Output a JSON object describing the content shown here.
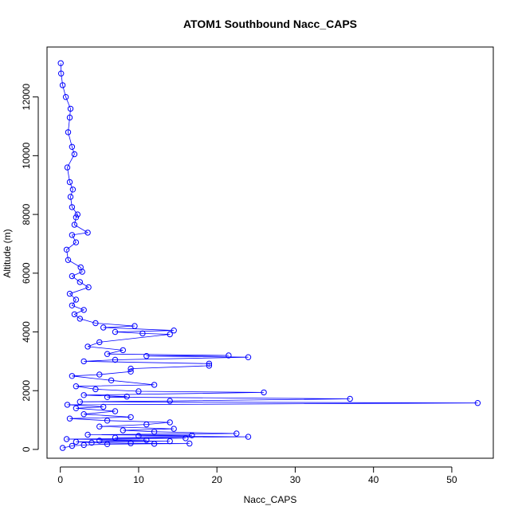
{
  "chart_data": {
    "type": "scatter",
    "title": "ATOM1 Southbound Nacc_CAPS",
    "xlabel": "Nacc_CAPS",
    "ylabel": "Altitude (m)",
    "xlim": [
      -1.7,
      55.3
    ],
    "ylim": [
      -300,
      13700
    ],
    "x_ticks": [
      0,
      10,
      20,
      30,
      40,
      50
    ],
    "x_tick_labels": [
      "0",
      "10",
      "20",
      "30",
      "40",
      "50"
    ],
    "y_ticks": [
      0,
      2000,
      4000,
      6000,
      8000,
      10000,
      12000
    ],
    "y_tick_labels": [
      "0",
      "2000",
      "4000",
      "6000",
      "8000",
      "10000",
      "12000"
    ],
    "grid": false,
    "point_style": "open-circle",
    "connected": true,
    "series": [
      {
        "color": "#0000ff",
        "points": [
          [
            0.3,
            50
          ],
          [
            1.5,
            120
          ],
          [
            3.0,
            150
          ],
          [
            6.0,
            180
          ],
          [
            12.0,
            190
          ],
          [
            16.5,
            200
          ],
          [
            9.0,
            210
          ],
          [
            4.0,
            230
          ],
          [
            2.0,
            260
          ],
          [
            14.0,
            280
          ],
          [
            5.0,
            300
          ],
          [
            11.0,
            320
          ],
          [
            0.8,
            350
          ],
          [
            16.0,
            380
          ],
          [
            7.0,
            400
          ],
          [
            24.0,
            430
          ],
          [
            10.0,
            460
          ],
          [
            16.8,
            480
          ],
          [
            3.5,
            500
          ],
          [
            22.5,
            540
          ],
          [
            12.0,
            600
          ],
          [
            8.0,
            650
          ],
          [
            14.5,
            700
          ],
          [
            5.0,
            780
          ],
          [
            11.0,
            850
          ],
          [
            14.0,
            920
          ],
          [
            6.0,
            980
          ],
          [
            1.2,
            1050
          ],
          [
            9.0,
            1100
          ],
          [
            3.0,
            1200
          ],
          [
            7.0,
            1300
          ],
          [
            2.0,
            1400
          ],
          [
            5.5,
            1450
          ],
          [
            0.9,
            1520
          ],
          [
            53.3,
            1580
          ],
          [
            2.5,
            1620
          ],
          [
            14.0,
            1650
          ],
          [
            37.0,
            1720
          ],
          [
            6.0,
            1780
          ],
          [
            8.5,
            1800
          ],
          [
            3.0,
            1850
          ],
          [
            26.0,
            1940
          ],
          [
            10.0,
            1980
          ],
          [
            4.5,
            2050
          ],
          [
            2.0,
            2150
          ],
          [
            12.0,
            2200
          ],
          [
            6.5,
            2350
          ],
          [
            1.5,
            2500
          ],
          [
            5.0,
            2550
          ],
          [
            9.0,
            2650
          ],
          [
            9.0,
            2750
          ],
          [
            19.0,
            2850
          ],
          [
            19.0,
            2920
          ],
          [
            3.0,
            3000
          ],
          [
            7.0,
            3050
          ],
          [
            24.0,
            3140
          ],
          [
            11.0,
            3180
          ],
          [
            21.5,
            3200
          ],
          [
            6.0,
            3250
          ],
          [
            8.0,
            3380
          ],
          [
            3.5,
            3500
          ],
          [
            5.0,
            3650
          ],
          [
            14.0,
            3920
          ],
          [
            10.5,
            3950
          ],
          [
            7.0,
            4000
          ],
          [
            14.5,
            4050
          ],
          [
            5.5,
            4150
          ],
          [
            9.5,
            4200
          ],
          [
            4.5,
            4300
          ],
          [
            2.5,
            4450
          ],
          [
            1.8,
            4600
          ],
          [
            3.0,
            4750
          ],
          [
            1.5,
            4900
          ],
          [
            2.0,
            5100
          ],
          [
            1.2,
            5300
          ],
          [
            3.6,
            5520
          ],
          [
            2.5,
            5700
          ],
          [
            1.5,
            5900
          ],
          [
            2.8,
            6050
          ],
          [
            2.6,
            6200
          ],
          [
            1.0,
            6450
          ],
          [
            0.8,
            6800
          ],
          [
            2.0,
            7050
          ],
          [
            1.5,
            7300
          ],
          [
            3.5,
            7380
          ],
          [
            1.8,
            7650
          ],
          [
            2.0,
            7900
          ],
          [
            2.2,
            8000
          ],
          [
            1.5,
            8250
          ],
          [
            1.3,
            8600
          ],
          [
            1.6,
            8850
          ],
          [
            1.2,
            9100
          ],
          [
            0.9,
            9600
          ],
          [
            1.8,
            10050
          ],
          [
            1.5,
            10300
          ],
          [
            1.0,
            10800
          ],
          [
            1.2,
            11300
          ],
          [
            1.3,
            11600
          ],
          [
            0.7,
            12000
          ],
          [
            0.3,
            12400
          ],
          [
            0.1,
            12800
          ],
          [
            0.05,
            13150
          ]
        ]
      }
    ]
  }
}
